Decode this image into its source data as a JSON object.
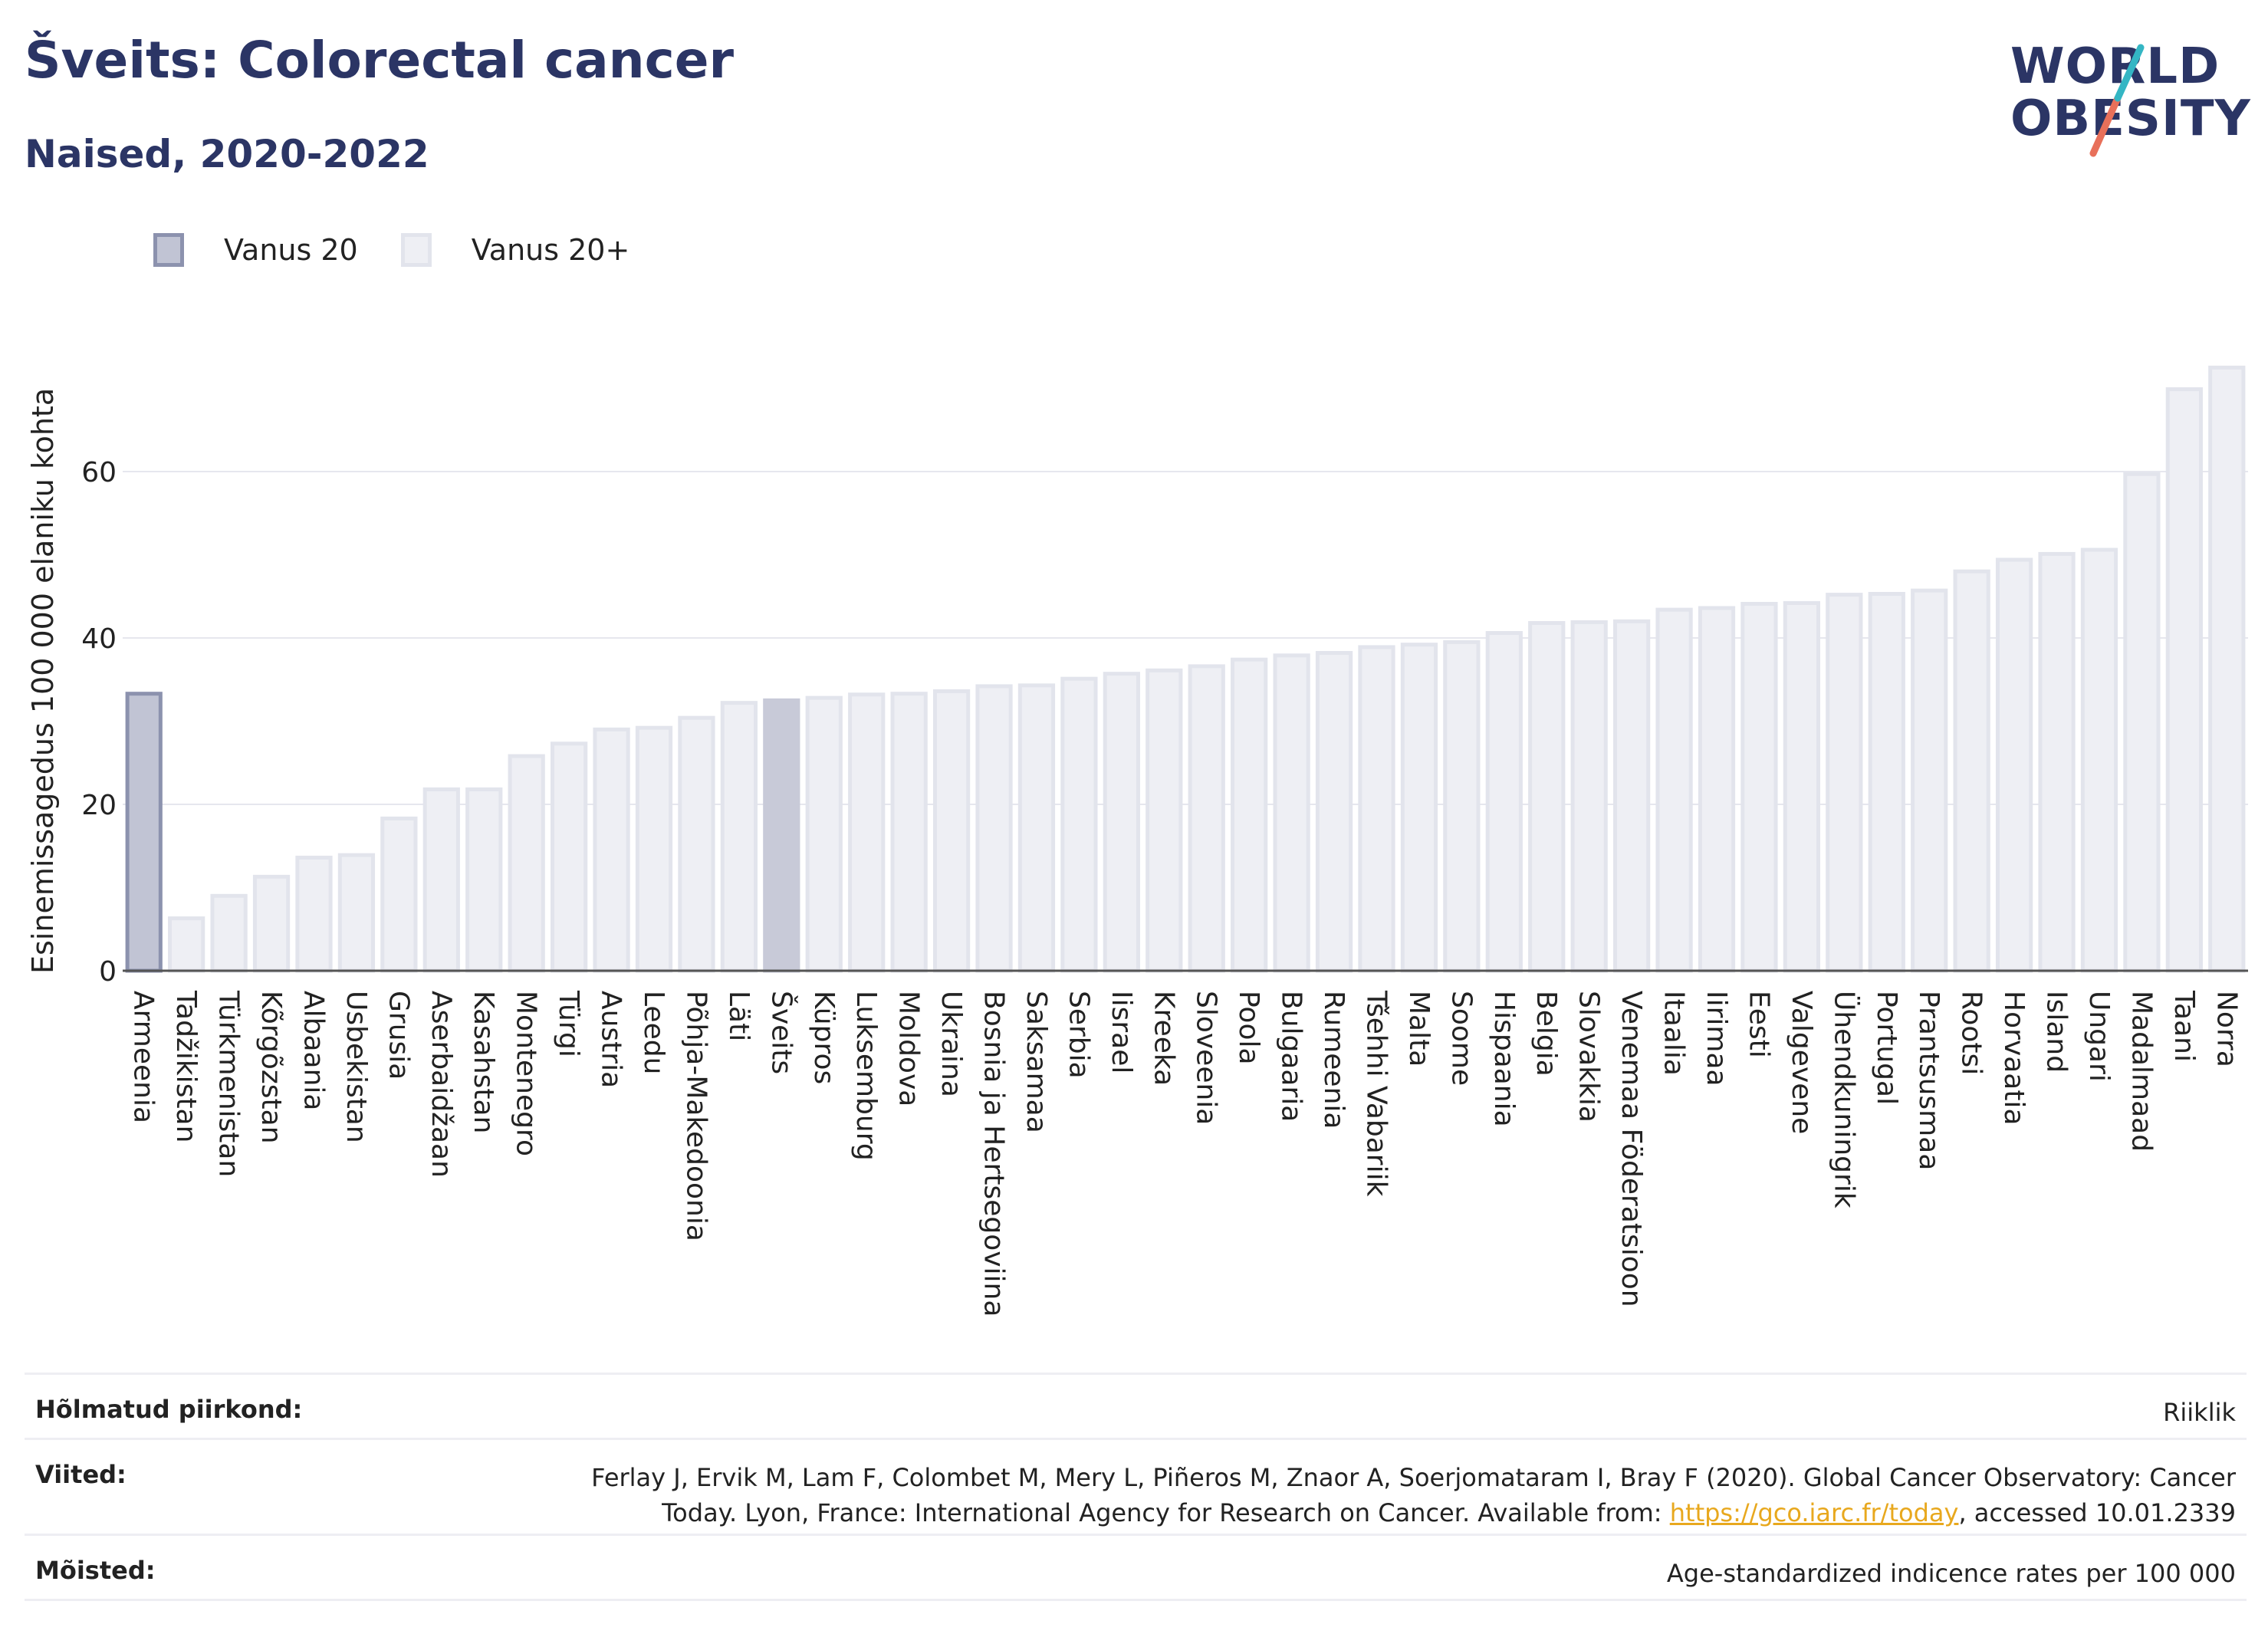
{
  "header": {
    "title": "Šveits: Colorectal cancer",
    "subtitle": "Naised, 2020-2022"
  },
  "logo": {
    "line1": "WORLD",
    "line2": "OBESITY"
  },
  "legend": [
    {
      "label": "Vanus 20",
      "color": "#8c92ae"
    },
    {
      "label": "Vanus 20+",
      "color": "#e2e4ec"
    }
  ],
  "chart_data": {
    "type": "bar",
    "ylabel": "Esinemissagedus 100 000 elaniku kohta",
    "ylim": [
      0,
      75
    ],
    "yticks": [
      0,
      20,
      40,
      60
    ],
    "grid": true,
    "legend_position": "top-left",
    "highlight_first": "Armeenia",
    "highlight_selected": "Šveits",
    "categories": [
      "Armeenia",
      "Tadžikistan",
      "Türkmenistan",
      "Kõrgõzstan",
      "Albaania",
      "Usbekistan",
      "Grusia",
      "Aserbaidžaan",
      "Kasahstan",
      "Montenegro",
      "Türgi",
      "Austria",
      "Leedu",
      "Põhja-Makedoonia",
      "Läti",
      "Šveits",
      "Küpros",
      "Luksemburg",
      "Moldova",
      "Ukraina",
      "Bosnia ja Hertsegoviina",
      "Saksamaa",
      "Serbia",
      "Iisrael",
      "Kreeka",
      "Sloveenia",
      "Poola",
      "Bulgaaria",
      "Rumeenia",
      "Tšehhi Vabariik",
      "Malta",
      "Soome",
      "Hispaania",
      "Belgia",
      "Slovakkia",
      "Venemaa Föderatsioon",
      "Itaalia",
      "Iirimaa",
      "Eesti",
      "Valgevene",
      "Ühendkuningrik",
      "Portugal",
      "Prantsusmaa",
      "Rootsi",
      "Horvaatia",
      "Island",
      "Ungari",
      "Madalmaad",
      "Taani",
      "Norra"
    ],
    "values": [
      33.3,
      6.3,
      9.0,
      11.3,
      13.6,
      13.9,
      18.3,
      21.8,
      21.8,
      25.8,
      27.3,
      29.0,
      29.2,
      30.4,
      32.2,
      32.5,
      32.8,
      33.2,
      33.3,
      33.6,
      34.2,
      34.3,
      35.1,
      35.7,
      36.1,
      36.6,
      37.4,
      37.9,
      38.2,
      38.9,
      39.2,
      39.5,
      40.6,
      41.8,
      41.9,
      42.0,
      43.4,
      43.6,
      44.1,
      44.2,
      45.2,
      45.3,
      45.7,
      48.0,
      49.4,
      50.1,
      50.6,
      59.7,
      69.9,
      72.5
    ]
  },
  "footer": {
    "region_label": "Hõlmatud piirkond:",
    "region_value": "Riiklik",
    "refs_label": "Viited:",
    "refs_line1": "Ferlay J, Ervik M, Lam F, Colombet M, Mery L, Piñeros M, Znaor A, Soerjomataram I, Bray F (2020). Global Cancer Observatory: Cancer",
    "refs_line2_pre": "Today. Lyon, France: International Agency for Research on Cancer. Available from: ",
    "refs_link": "https://gco.iarc.fr/today",
    "refs_line2_post": ", accessed 10.01.2339",
    "defs_label": "Mõisted:",
    "defs_value": "Age-standardized indicence rates per 100 000"
  }
}
